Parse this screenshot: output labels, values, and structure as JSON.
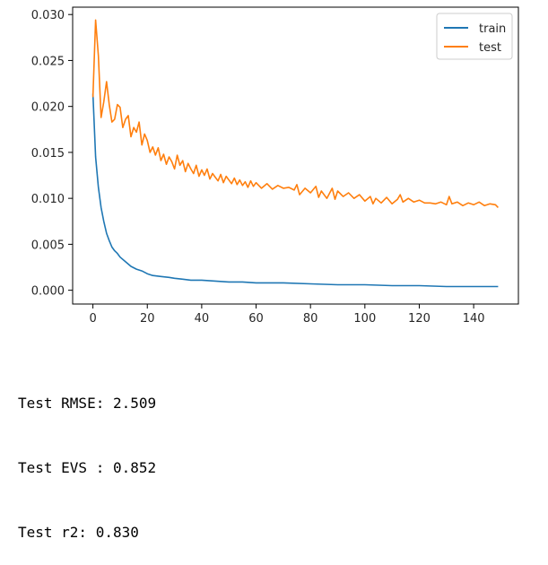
{
  "chart_data": {
    "type": "line",
    "xlim": [
      -7.45,
      156.45
    ],
    "ylim": [
      -0.0015,
      0.0308
    ],
    "xticks": [
      "0",
      "20",
      "40",
      "60",
      "80",
      "100",
      "120",
      "140"
    ],
    "xtick_values": [
      0,
      20,
      40,
      60,
      80,
      100,
      120,
      140
    ],
    "yticks": [
      "0.000",
      "0.005",
      "0.010",
      "0.015",
      "0.020",
      "0.025",
      "0.030"
    ],
    "ytick_values": [
      0,
      0.005,
      0.01,
      0.015,
      0.02,
      0.025,
      0.03
    ],
    "grid": false,
    "legend": "top-right",
    "series": [
      {
        "name": "train",
        "color": "#1f77b4",
        "points": [
          [
            0,
            0.0214
          ],
          [
            1,
            0.0145
          ],
          [
            2,
            0.0112
          ],
          [
            3,
            0.009
          ],
          [
            4,
            0.0075
          ],
          [
            5,
            0.0062
          ],
          [
            6,
            0.0054
          ],
          [
            7,
            0.0047
          ],
          [
            8,
            0.0043
          ],
          [
            9,
            0.004
          ],
          [
            10,
            0.0036
          ],
          [
            12,
            0.0031
          ],
          [
            14,
            0.0026
          ],
          [
            16,
            0.0023
          ],
          [
            18,
            0.0021
          ],
          [
            20,
            0.0018
          ],
          [
            22,
            0.0016
          ],
          [
            25,
            0.0015
          ],
          [
            28,
            0.0014
          ],
          [
            30,
            0.0013
          ],
          [
            33,
            0.0012
          ],
          [
            36,
            0.0011
          ],
          [
            40,
            0.0011
          ],
          [
            45,
            0.001
          ],
          [
            50,
            0.0009
          ],
          [
            55,
            0.0009
          ],
          [
            60,
            0.0008
          ],
          [
            70,
            0.0008
          ],
          [
            80,
            0.0007
          ],
          [
            90,
            0.0006
          ],
          [
            100,
            0.0006
          ],
          [
            110,
            0.0005
          ],
          [
            120,
            0.0005
          ],
          [
            130,
            0.0004
          ],
          [
            140,
            0.0004
          ],
          [
            149,
            0.0004
          ]
        ]
      },
      {
        "name": "test",
        "color": "#ff7f0e",
        "points": [
          [
            0,
            0.021
          ],
          [
            1,
            0.0294
          ],
          [
            2,
            0.0255
          ],
          [
            3,
            0.0188
          ],
          [
            4,
            0.0205
          ],
          [
            5,
            0.0227
          ],
          [
            6,
            0.0202
          ],
          [
            7,
            0.0183
          ],
          [
            8,
            0.0186
          ],
          [
            9,
            0.0202
          ],
          [
            10,
            0.0199
          ],
          [
            11,
            0.0177
          ],
          [
            12,
            0.0186
          ],
          [
            13,
            0.019
          ],
          [
            14,
            0.0167
          ],
          [
            15,
            0.0177
          ],
          [
            16,
            0.0172
          ],
          [
            17,
            0.0183
          ],
          [
            18,
            0.0158
          ],
          [
            19,
            0.017
          ],
          [
            20,
            0.0163
          ],
          [
            21,
            0.015
          ],
          [
            22,
            0.0156
          ],
          [
            23,
            0.0147
          ],
          [
            24,
            0.0155
          ],
          [
            25,
            0.0141
          ],
          [
            26,
            0.0148
          ],
          [
            27,
            0.0137
          ],
          [
            28,
            0.0145
          ],
          [
            29,
            0.014
          ],
          [
            30,
            0.0132
          ],
          [
            31,
            0.0147
          ],
          [
            32,
            0.0136
          ],
          [
            33,
            0.0141
          ],
          [
            34,
            0.0129
          ],
          [
            35,
            0.0138
          ],
          [
            36,
            0.0132
          ],
          [
            37,
            0.0127
          ],
          [
            38,
            0.0136
          ],
          [
            39,
            0.0124
          ],
          [
            40,
            0.0131
          ],
          [
            41,
            0.0125
          ],
          [
            42,
            0.0132
          ],
          [
            43,
            0.0121
          ],
          [
            44,
            0.0127
          ],
          [
            45,
            0.0123
          ],
          [
            46,
            0.0119
          ],
          [
            47,
            0.0126
          ],
          [
            48,
            0.0117
          ],
          [
            49,
            0.0124
          ],
          [
            50,
            0.012
          ],
          [
            51,
            0.0116
          ],
          [
            52,
            0.0122
          ],
          [
            53,
            0.0115
          ],
          [
            54,
            0.012
          ],
          [
            55,
            0.0114
          ],
          [
            56,
            0.0118
          ],
          [
            57,
            0.0112
          ],
          [
            58,
            0.0119
          ],
          [
            59,
            0.0113
          ],
          [
            60,
            0.0117
          ],
          [
            62,
            0.0111
          ],
          [
            64,
            0.0116
          ],
          [
            66,
            0.011
          ],
          [
            68,
            0.0114
          ],
          [
            70,
            0.0111
          ],
          [
            72,
            0.0112
          ],
          [
            74,
            0.0109
          ],
          [
            75,
            0.0115
          ],
          [
            76,
            0.0104
          ],
          [
            78,
            0.0111
          ],
          [
            80,
            0.0106
          ],
          [
            82,
            0.0113
          ],
          [
            83,
            0.0101
          ],
          [
            84,
            0.0108
          ],
          [
            86,
            0.01
          ],
          [
            88,
            0.0111
          ],
          [
            89,
            0.0099
          ],
          [
            90,
            0.0108
          ],
          [
            92,
            0.0102
          ],
          [
            94,
            0.0106
          ],
          [
            96,
            0.01
          ],
          [
            98,
            0.0104
          ],
          [
            100,
            0.0097
          ],
          [
            102,
            0.0102
          ],
          [
            103,
            0.0094
          ],
          [
            104,
            0.01
          ],
          [
            106,
            0.0095
          ],
          [
            108,
            0.0101
          ],
          [
            110,
            0.0094
          ],
          [
            112,
            0.0099
          ],
          [
            113,
            0.0104
          ],
          [
            114,
            0.0096
          ],
          [
            116,
            0.01
          ],
          [
            118,
            0.0096
          ],
          [
            120,
            0.0098
          ],
          [
            122,
            0.0095
          ],
          [
            124,
            0.0095
          ],
          [
            126,
            0.0094
          ],
          [
            128,
            0.0096
          ],
          [
            130,
            0.0093
          ],
          [
            131,
            0.0102
          ],
          [
            132,
            0.0094
          ],
          [
            134,
            0.0096
          ],
          [
            136,
            0.0092
          ],
          [
            138,
            0.0095
          ],
          [
            140,
            0.0093
          ],
          [
            142,
            0.0096
          ],
          [
            144,
            0.0092
          ],
          [
            146,
            0.0094
          ],
          [
            148,
            0.0093
          ],
          [
            149,
            0.009
          ]
        ]
      }
    ]
  },
  "output": {
    "line1": "Test RMSE: 2.509",
    "line2": "Test EVS : 0.852",
    "line3": "Test r2: 0.830"
  }
}
